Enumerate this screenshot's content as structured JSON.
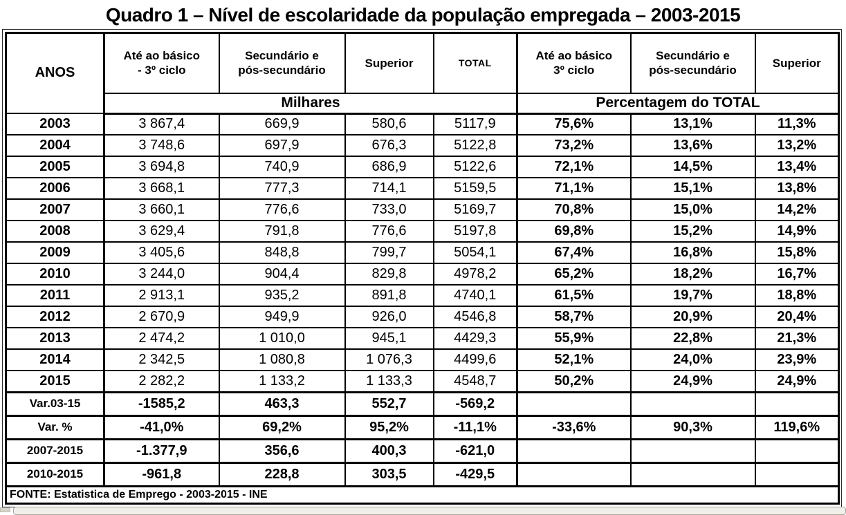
{
  "title": "Quadro 1 – Nível de escolaridade da população empregada – 2003-2015",
  "table": {
    "corner_header": "ANOS",
    "top_headers": [
      "Até ao básico\n- 3º ciclo",
      "Secundário e\npós-secundário",
      "Superior",
      "TOTAL",
      "Até ao básico\n3º ciclo",
      "Secundário e\npós-secundário",
      "Superior"
    ],
    "group_headers": {
      "milhares": "Milhares",
      "percentagem": "Percentagem do TOTAL"
    },
    "year_rows": [
      {
        "label": "2003",
        "cells": [
          "3 867,4",
          "669,9",
          "580,6",
          "5117,9",
          "75,6%",
          "13,1%",
          "11,3%"
        ]
      },
      {
        "label": "2004",
        "cells": [
          "3 748,6",
          "697,9",
          "676,3",
          "5122,8",
          "73,2%",
          "13,6%",
          "13,2%"
        ]
      },
      {
        "label": "2005",
        "cells": [
          "3 694,8",
          "740,9",
          "686,9",
          "5122,6",
          "72,1%",
          "14,5%",
          "13,4%"
        ]
      },
      {
        "label": "2006",
        "cells": [
          "3 668,1",
          "777,3",
          "714,1",
          "5159,5",
          "71,1%",
          "15,1%",
          "13,8%"
        ]
      },
      {
        "label": "2007",
        "cells": [
          "3 660,1",
          "776,6",
          "733,0",
          "5169,7",
          "70,8%",
          "15,0%",
          "14,2%"
        ]
      },
      {
        "label": "2008",
        "cells": [
          "3 629,4",
          "791,8",
          "776,6",
          "5197,8",
          "69,8%",
          "15,2%",
          "14,9%"
        ]
      },
      {
        "label": "2009",
        "cells": [
          "3 405,6",
          "848,8",
          "799,7",
          "5054,1",
          "67,4%",
          "16,8%",
          "15,8%"
        ]
      },
      {
        "label": "2010",
        "cells": [
          "3 244,0",
          "904,4",
          "829,8",
          "4978,2",
          "65,2%",
          "18,2%",
          "16,7%"
        ]
      },
      {
        "label": "2011",
        "cells": [
          "2 913,1",
          "935,2",
          "891,8",
          "4740,1",
          "61,5%",
          "19,7%",
          "18,8%"
        ]
      },
      {
        "label": "2012",
        "cells": [
          "2 670,9",
          "949,9",
          "926,0",
          "4546,8",
          "58,7%",
          "20,9%",
          "20,4%"
        ]
      },
      {
        "label": "2013",
        "cells": [
          "2 474,2",
          "1 010,0",
          "945,1",
          "4429,3",
          "55,9%",
          "22,8%",
          "21,3%"
        ]
      },
      {
        "label": "2014",
        "cells": [
          "2 342,5",
          "1 080,8",
          "1 076,3",
          "4499,6",
          "52,1%",
          "24,0%",
          "23,9%"
        ]
      },
      {
        "label": "2015",
        "cells": [
          "2 282,2",
          "1 133,2",
          "1 133,3",
          "4548,7",
          "50,2%",
          "24,9%",
          "24,9%"
        ]
      }
    ],
    "summary_rows": [
      {
        "label": "Var.03-15",
        "cells": [
          "-1585,2",
          "463,3",
          "552,7",
          "-569,2",
          "",
          "",
          ""
        ]
      },
      {
        "label": "Var. %",
        "cells": [
          "-41,0%",
          "69,2%",
          "95,2%",
          "-11,1%",
          "-33,6%",
          "90,3%",
          "119,6%"
        ]
      },
      {
        "label": "2007-2015",
        "cells": [
          "-1.377,9",
          "356,6",
          "400,3",
          "-621,0",
          "",
          "",
          ""
        ]
      },
      {
        "label": "2010-2015",
        "cells": [
          "-961,8",
          "228,8",
          "303,5",
          "-429,5",
          "",
          "",
          ""
        ]
      }
    ],
    "footer": "FONTE: Estatistica de Emprego - 2003-2015 - INE"
  },
  "colors": {
    "table_border": "#000000",
    "text": "#000000",
    "background": "#ffffff",
    "scroll_track": "#f1efe9",
    "scroll_track_border": "#a9a69e"
  }
}
